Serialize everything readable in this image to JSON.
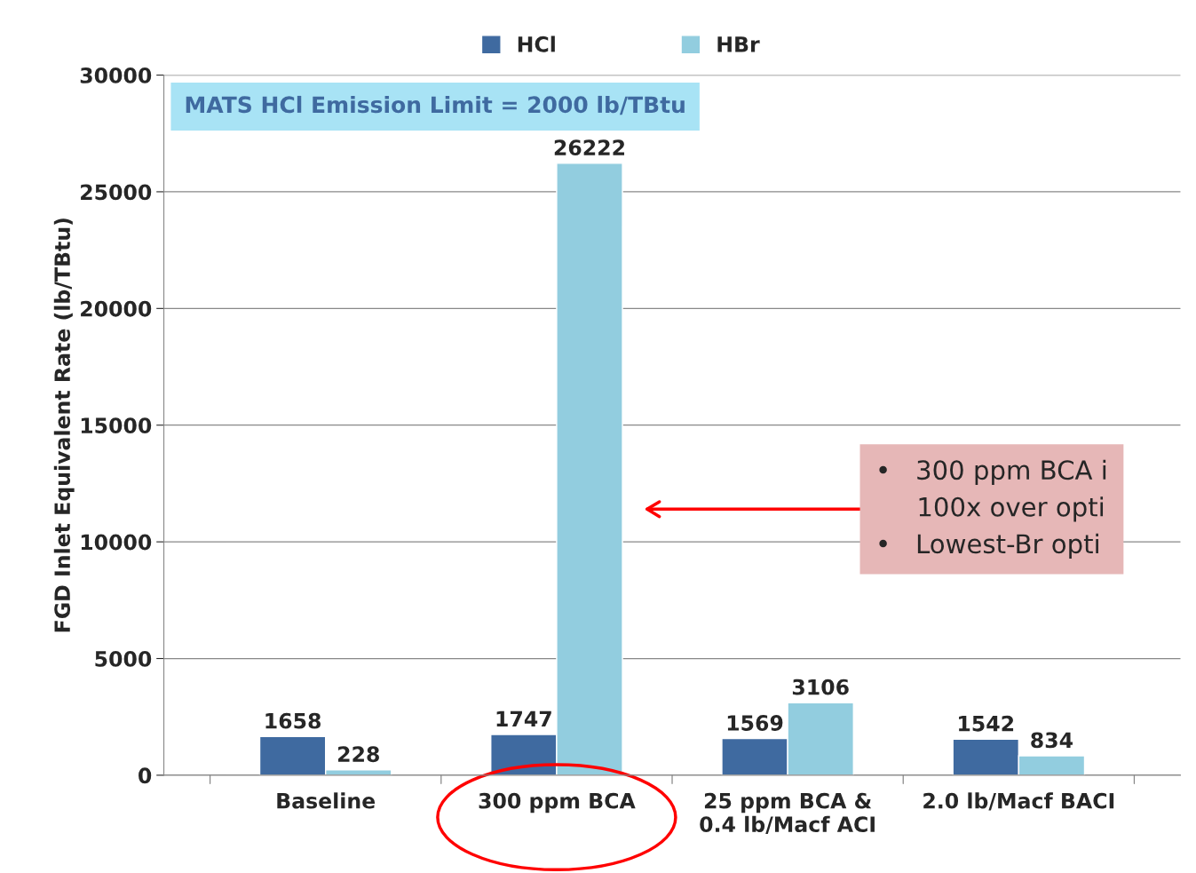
{
  "chart_data": {
    "type": "bar",
    "ylabel": "FGD Inlet Equivalent Rate (lb/TBtu)",
    "categories": [
      "Baseline",
      "300 ppm BCA",
      "25 ppm BCA &\n0.4 lb/Macf ACI",
      "2.0 lb/Macf BACI"
    ],
    "series": [
      {
        "name": "HCl",
        "color": "#3f6aa0",
        "values": [
          1658,
          1747,
          1569,
          1542
        ]
      },
      {
        "name": "HBr",
        "color": "#92cddf",
        "values": [
          228,
          26222,
          3106,
          834
        ]
      }
    ],
    "ylim": [
      0,
      30000
    ],
    "yticks": [
      0,
      5000,
      10000,
      15000,
      20000,
      25000,
      30000
    ],
    "grid": "y",
    "legend": "top",
    "data_labels": true,
    "annotations": [
      "MATS HCl Emission Limit = 2000 lb/TBtu",
      "•   300 ppm BCA i\n     100x over opti\n•   Lowest-Br opti"
    ]
  }
}
